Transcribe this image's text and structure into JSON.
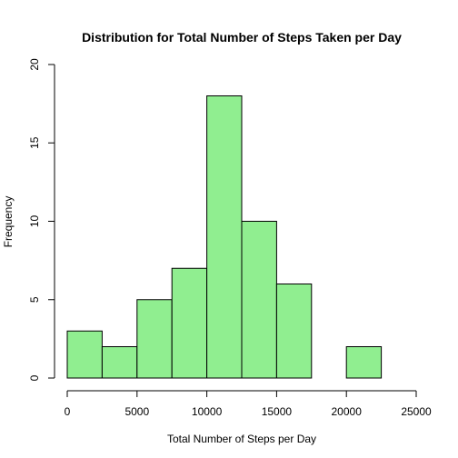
{
  "chart_data": {
    "type": "bar",
    "title": "Distribution for Total Number of Steps Taken per Day",
    "xlabel": "Total Number of Steps per Day",
    "ylabel": "Frequency",
    "bins": [
      {
        "from": 0,
        "to": 2500,
        "count": 3
      },
      {
        "from": 2500,
        "to": 5000,
        "count": 2
      },
      {
        "from": 5000,
        "to": 7500,
        "count": 5
      },
      {
        "from": 7500,
        "to": 10000,
        "count": 7
      },
      {
        "from": 10000,
        "to": 12500,
        "count": 18
      },
      {
        "from": 12500,
        "to": 15000,
        "count": 10
      },
      {
        "from": 15000,
        "to": 17500,
        "count": 6
      },
      {
        "from": 17500,
        "to": 20000,
        "count": 0
      },
      {
        "from": 20000,
        "to": 22500,
        "count": 2
      }
    ],
    "xlim": [
      0,
      25000
    ],
    "ylim": [
      0,
      20
    ],
    "xticks": [
      "0",
      "5000",
      "10000",
      "15000",
      "20000",
      "25000"
    ],
    "yticks": [
      "0",
      "5",
      "10",
      "15",
      "20"
    ],
    "bar_color": "#90ee90",
    "edge_color": "#000000",
    "grid": false
  }
}
